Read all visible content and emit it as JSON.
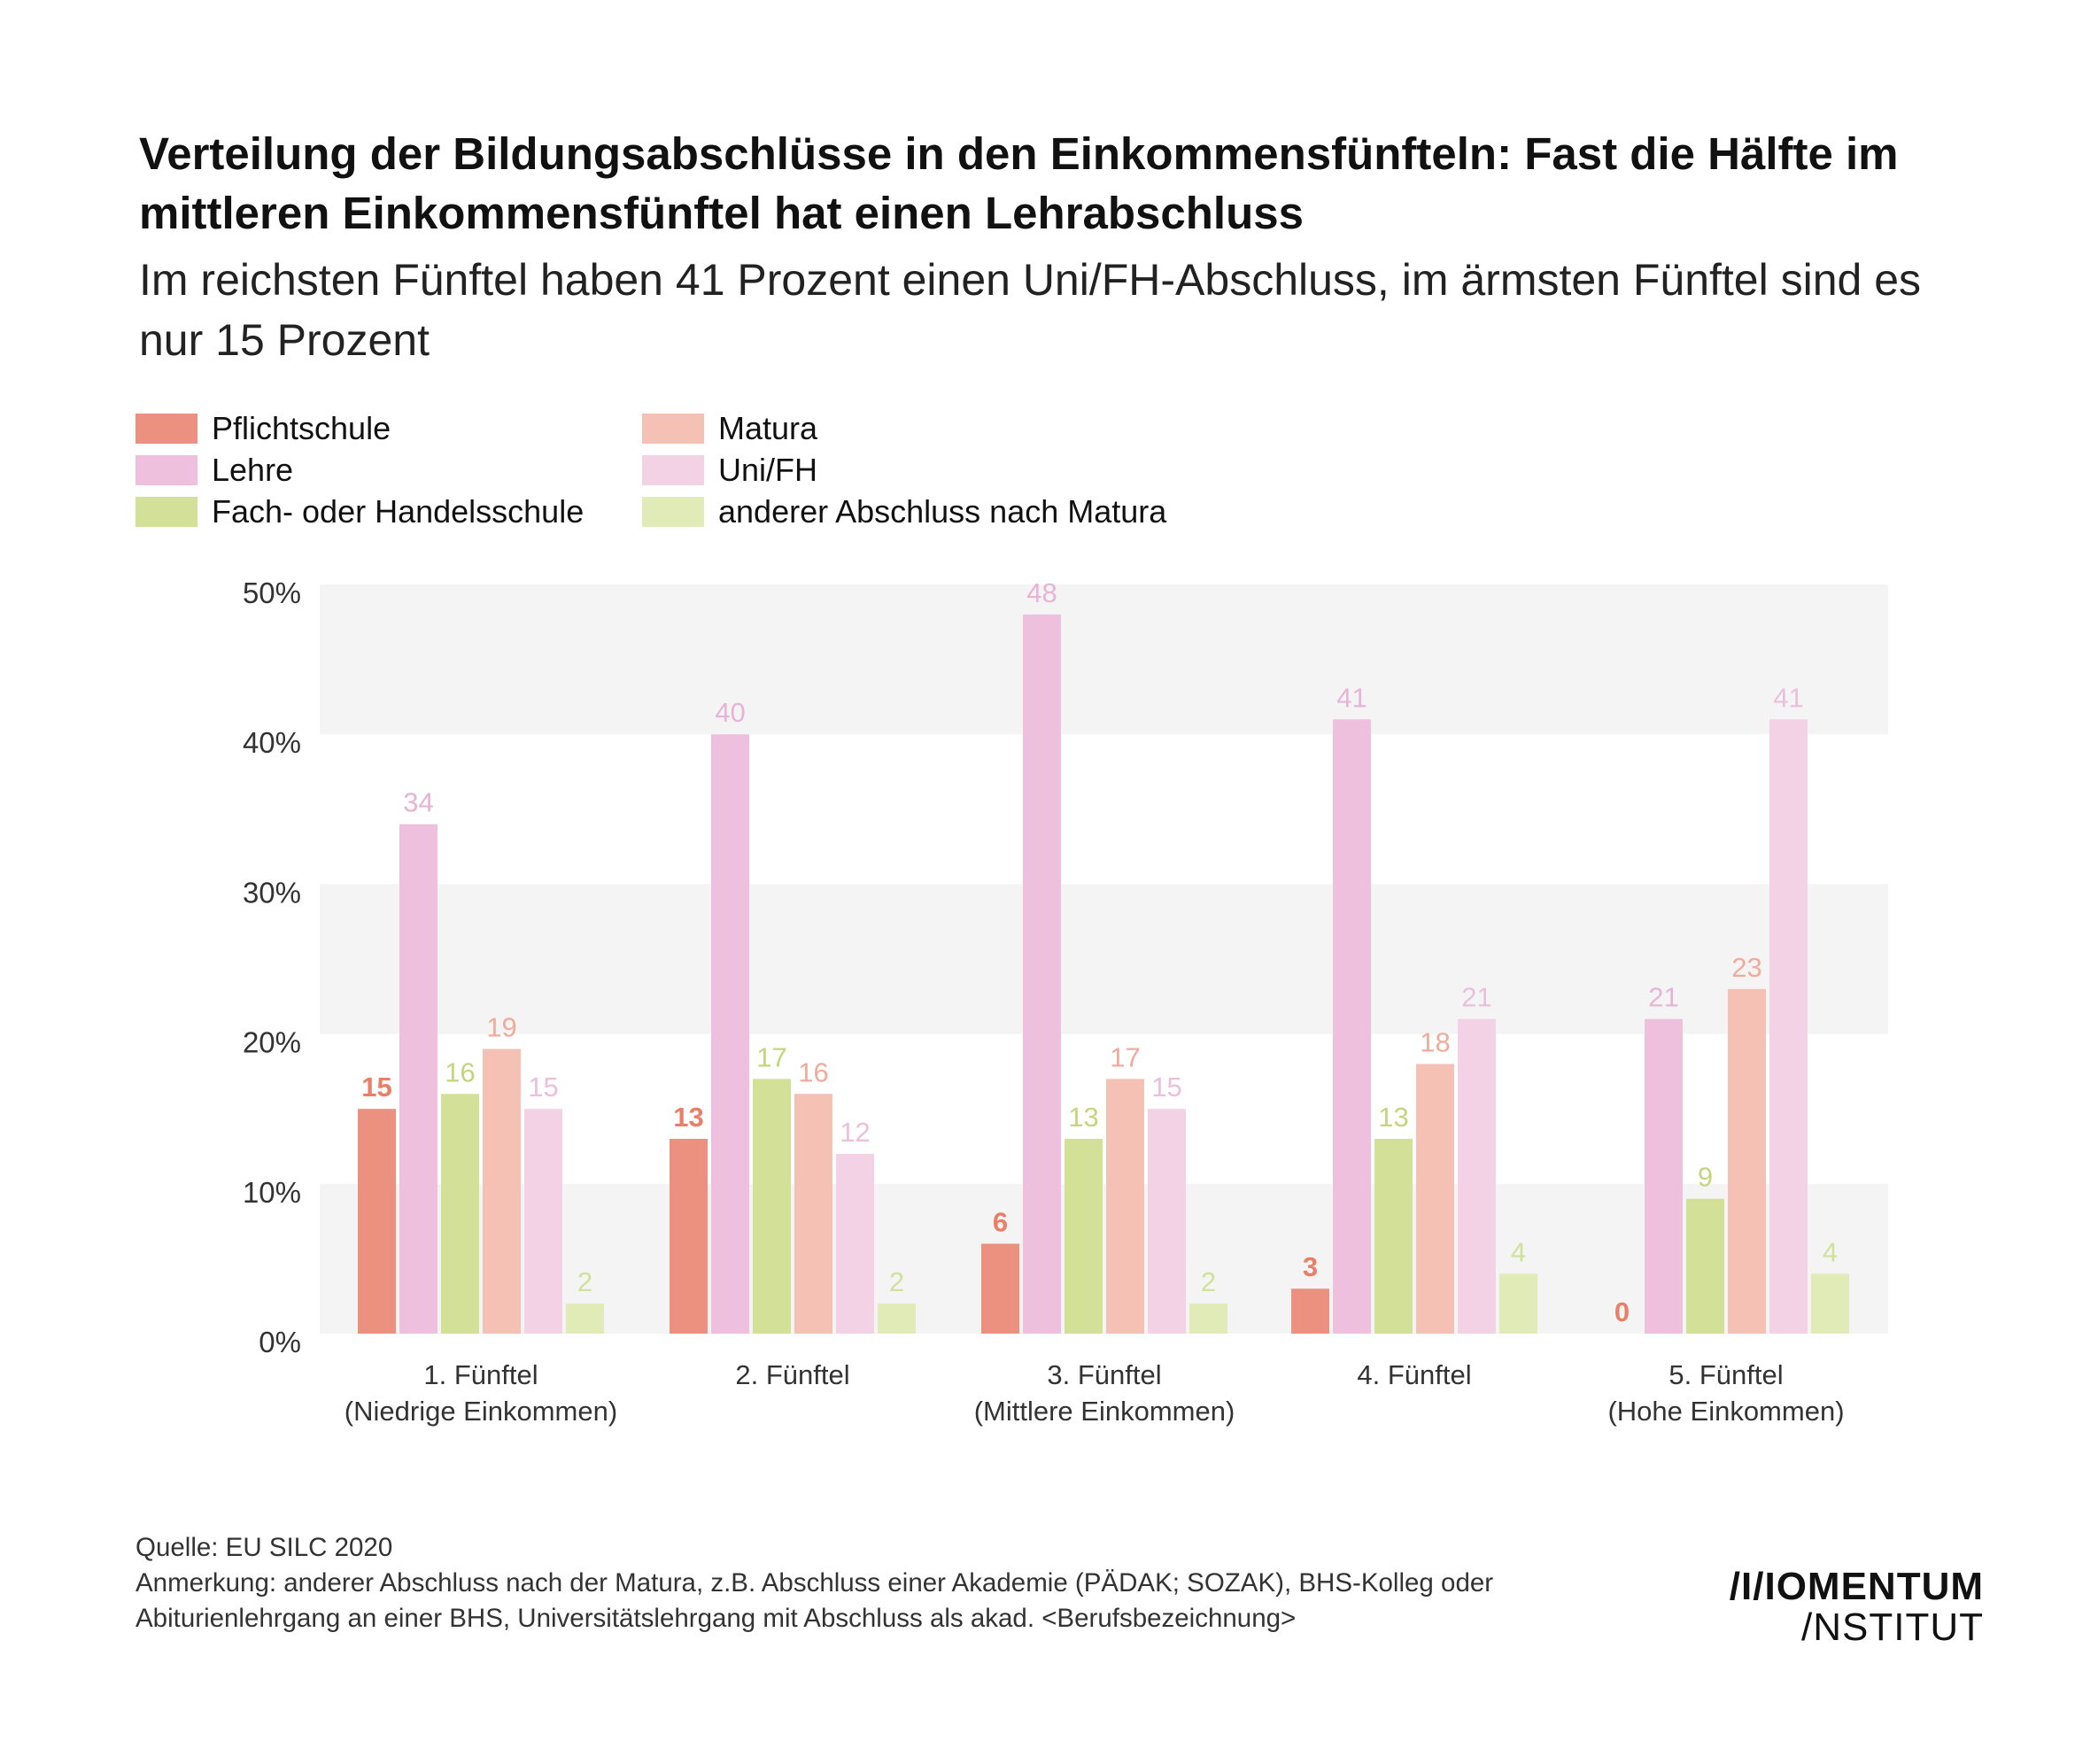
{
  "title": "Verteilung der Bildungsabschlüsse in den Einkommensfünfteln: Fast die Hälfte im mittleren Einkommensfünftel hat einen Lehrabschluss",
  "subtitle": "Im reichsten Fünftel haben 41 Prozent einen Uni/FH-Abschluss, im ärmsten Fünftel sind es nur 15 Prozent",
  "colors": {
    "pflichtschule": "#ec917f",
    "lehre": "#efc0de",
    "fach": "#d2e197",
    "matura": "#f4c1b4",
    "unifh": "#f3d2e6",
    "anderer": "#e0ebb8",
    "band": "#f4f4f4"
  },
  "label_colors": {
    "pflichtschule": "#ea7f68",
    "lehre": "#e8b3d5",
    "fach": "#c2d67e",
    "matura": "#f1ab9b",
    "unifh": "#ecbfdc",
    "anderer": "#cfe19a"
  },
  "chart_data": {
    "type": "bar",
    "title": "Verteilung der Bildungsabschlüsse in den Einkommensfünfteln",
    "ylabel": "",
    "xlabel": "",
    "ylim": [
      0,
      50
    ],
    "yticks": [
      0,
      10,
      20,
      30,
      40,
      50
    ],
    "ytick_labels": [
      "0%",
      "10%",
      "20%",
      "30%",
      "40%",
      "50%"
    ],
    "categories": [
      {
        "line1": "1. Fünftel",
        "line2": "(Niedrige Einkommen)"
      },
      {
        "line1": "2. Fünftel",
        "line2": ""
      },
      {
        "line1": "3. Fünftel",
        "line2": "(Mittlere Einkommen)"
      },
      {
        "line1": "4. Fünftel",
        "line2": ""
      },
      {
        "line1": "5. Fünftel",
        "line2": "(Hohe Einkommen)"
      }
    ],
    "series": [
      {
        "key": "pflichtschule",
        "name": "Pflichtschule",
        "values": [
          15,
          13,
          6,
          3,
          0
        ]
      },
      {
        "key": "lehre",
        "name": "Lehre",
        "values": [
          34,
          40,
          48,
          41,
          21
        ]
      },
      {
        "key": "fach",
        "name": "Fach- oder Handelsschule",
        "values": [
          16,
          17,
          13,
          13,
          9
        ]
      },
      {
        "key": "matura",
        "name": "Matura",
        "values": [
          19,
          16,
          17,
          18,
          23
        ]
      },
      {
        "key": "unifh",
        "name": "Uni/FH",
        "values": [
          15,
          12,
          15,
          21,
          41
        ]
      },
      {
        "key": "anderer",
        "name": "anderer Abschluss nach Matura",
        "values": [
          2,
          2,
          2,
          4,
          4
        ]
      }
    ],
    "legend_position": "top-left"
  },
  "footer": {
    "source": "Quelle: EU SILC 2020",
    "note_line1": "Anmerkung: anderer Abschluss nach der Matura, z.B. Abschluss einer Akademie (PÄDAK; SOZAK), BHS-Kolleg oder",
    "note_line2": "Abiturienlehrgang an einer BHS, Universitätslehrgang mit Abschluss als akad. <Berufsbezeichnung>"
  },
  "logo": {
    "line1": "/I/IOMENTUM",
    "line2": "/NSTITUT"
  }
}
